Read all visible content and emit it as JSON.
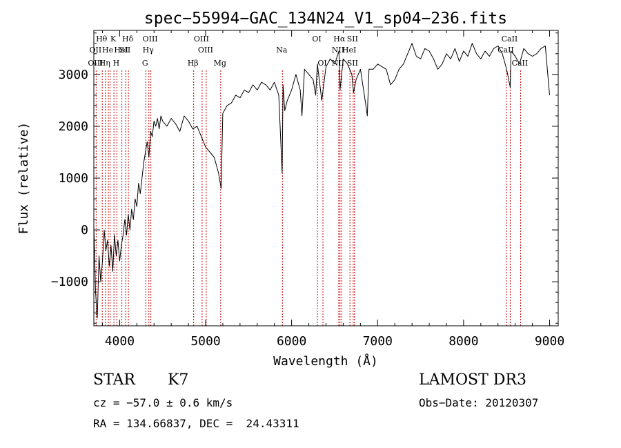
{
  "chart_data": {
    "type": "line",
    "title": "spec−55994−GAC_134N24_V1_sp04−236.fits",
    "xlabel": "Wavelength (Å)",
    "ylabel": "Flux (relative)",
    "xlim": [
      3700,
      9100
    ],
    "ylim": [
      -1850,
      3850
    ],
    "x_ticks": [
      4000,
      5000,
      6000,
      7000,
      8000,
      9000
    ],
    "y_ticks": [
      -1000,
      0,
      1000,
      2000,
      3000
    ],
    "x_tick_labels": [
      "4000",
      "5000",
      "6000",
      "7000",
      "8000",
      "9000"
    ],
    "y_tick_labels": [
      "−1000",
      "0",
      "1000",
      "2000",
      "3000"
    ],
    "line_color": "#000000",
    "marker_color": "#cc0000",
    "series": [
      {
        "x": [
          3700,
          3720,
          3740,
          3760,
          3780,
          3800,
          3820,
          3840,
          3860,
          3880,
          3900,
          3920,
          3940,
          3960,
          3980,
          4000,
          4020,
          4040,
          4060,
          4080,
          4100,
          4120,
          4140,
          4160,
          4180,
          4200,
          4220,
          4240,
          4260,
          4280,
          4300,
          4320,
          4340,
          4360,
          4380,
          4400,
          4420,
          4440,
          4460,
          4480,
          4500,
          4550,
          4600,
          4650,
          4700,
          4750,
          4800,
          4850,
          4900,
          4950,
          5000,
          5050,
          5100,
          5150,
          5180,
          5200,
          5250,
          5300,
          5350,
          5400,
          5450,
          5500,
          5550,
          5600,
          5650,
          5700,
          5750,
          5800,
          5850,
          5890,
          5900,
          5920,
          5950,
          6000,
          6050,
          6100,
          6120,
          6150,
          6200,
          6250,
          6280,
          6300,
          6350,
          6400,
          6450,
          6500,
          6550,
          6563,
          6600,
          6650,
          6700,
          6720,
          6750,
          6800,
          6850,
          6880,
          6900,
          6950,
          7000,
          7050,
          7100,
          7150,
          7200,
          7250,
          7300,
          7350,
          7400,
          7450,
          7500,
          7550,
          7600,
          7650,
          7700,
          7750,
          7800,
          7850,
          7900,
          7950,
          8000,
          8050,
          8100,
          8150,
          8200,
          8250,
          8300,
          8350,
          8400,
          8450,
          8500,
          8542,
          8550,
          8600,
          8650,
          8700,
          8750,
          8800,
          8850,
          8900,
          8950,
          9000
        ],
        "y": [
          100,
          -1200,
          -1700,
          -500,
          -1000,
          -600,
          0,
          -400,
          -200,
          -700,
          -300,
          -800,
          -100,
          -500,
          -200,
          -600,
          -300,
          -100,
          200,
          -100,
          300,
          0,
          400,
          200,
          600,
          450,
          900,
          700,
          1000,
          1300,
          1500,
          1700,
          1400,
          1900,
          1800,
          2100,
          2000,
          2150,
          1950,
          2200,
          2100,
          2000,
          2150,
          2050,
          1900,
          2200,
          2100,
          1950,
          2000,
          1800,
          1600,
          1500,
          1400,
          1100,
          800,
          2250,
          2400,
          2450,
          2600,
          2550,
          2700,
          2650,
          2800,
          2700,
          2850,
          2800,
          2700,
          2850,
          2600,
          1100,
          2800,
          2300,
          2500,
          2700,
          3000,
          2700,
          2200,
          3100,
          3000,
          2900,
          2600,
          3200,
          2500,
          3150,
          3300,
          3200,
          3450,
          2700,
          3300,
          3200,
          3000,
          2650,
          2900,
          3100,
          2550,
          2200,
          3100,
          3100,
          3200,
          3150,
          3100,
          2800,
          2900,
          3100,
          3200,
          3400,
          3600,
          3350,
          3300,
          3500,
          3450,
          3300,
          3100,
          3200,
          3400,
          3300,
          3500,
          3250,
          3450,
          3350,
          3600,
          3400,
          3300,
          3450,
          3350,
          3500,
          3550,
          3400,
          3100,
          2750,
          3450,
          3350,
          3200,
          3500,
          3400,
          3350,
          3400,
          3500,
          3550,
          2600
        ]
      }
    ],
    "lines": [
      {
        "x": 3727,
        "rows": [
          "",
          "OII",
          "OIII"
        ]
      },
      {
        "x": 3798,
        "rows": [
          "Hθ",
          "",
          ""
        ]
      },
      {
        "x": 3835,
        "rows": [
          "",
          "",
          "Hη"
        ]
      },
      {
        "x": 3869,
        "rows": [
          "",
          "He",
          ""
        ]
      },
      {
        "x": 3889,
        "rows": [
          "",
          "",
          ""
        ]
      },
      {
        "x": 3934,
        "rows": [
          "K",
          "",
          ""
        ]
      },
      {
        "x": 3968,
        "rows": [
          "",
          "",
          "H"
        ]
      },
      {
        "x": 4026,
        "rows": [
          "",
          "HeI",
          ""
        ]
      },
      {
        "x": 4070,
        "rows": [
          "",
          "SII",
          ""
        ]
      },
      {
        "x": 4102,
        "rows": [
          "Hδ",
          "",
          ""
        ]
      },
      {
        "x": 4304,
        "rows": [
          "",
          "",
          "G"
        ]
      },
      {
        "x": 4340,
        "rows": [
          "",
          "Hγ",
          ""
        ]
      },
      {
        "x": 4363,
        "rows": [
          "OIII",
          "",
          ""
        ]
      },
      {
        "x": 4861,
        "rows": [
          "",
          "",
          "Hβ"
        ]
      },
      {
        "x": 4959,
        "rows": [
          "OIII",
          "",
          ""
        ]
      },
      {
        "x": 5007,
        "rows": [
          "",
          "OIII",
          ""
        ]
      },
      {
        "x": 5175,
        "rows": [
          "",
          "",
          "Mg"
        ]
      },
      {
        "x": 5893,
        "rows": [
          "",
          "Na",
          ""
        ]
      },
      {
        "x": 6300,
        "rows": [
          "OI",
          "",
          ""
        ]
      },
      {
        "x": 6364,
        "rows": [
          "",
          "",
          "OI"
        ]
      },
      {
        "x": 6548,
        "rows": [
          "",
          "NII",
          "NII"
        ]
      },
      {
        "x": 6563,
        "rows": [
          "Hα",
          "",
          ""
        ]
      },
      {
        "x": 6583,
        "rows": [
          "",
          "",
          ""
        ]
      },
      {
        "x": 6678,
        "rows": [
          "",
          "HeI",
          ""
        ]
      },
      {
        "x": 6716,
        "rows": [
          "SII",
          "",
          "SII"
        ]
      },
      {
        "x": 6731,
        "rows": [
          "",
          "",
          ""
        ]
      },
      {
        "x": 8498,
        "rows": [
          "",
          "CaII",
          ""
        ]
      },
      {
        "x": 8542,
        "rows": [
          "CaII",
          "",
          ""
        ]
      },
      {
        "x": 8662,
        "rows": [
          "",
          "",
          "CaII"
        ]
      }
    ]
  },
  "info": {
    "class_label": "STAR",
    "subclass": "K7",
    "survey": "LAMOST DR3",
    "cz": "cz = −57.0 ± 0.6 km/s",
    "obs_date": "Obs−Date: 20120307",
    "coords": "RA = 134.66837, DEC =  24.43311"
  }
}
